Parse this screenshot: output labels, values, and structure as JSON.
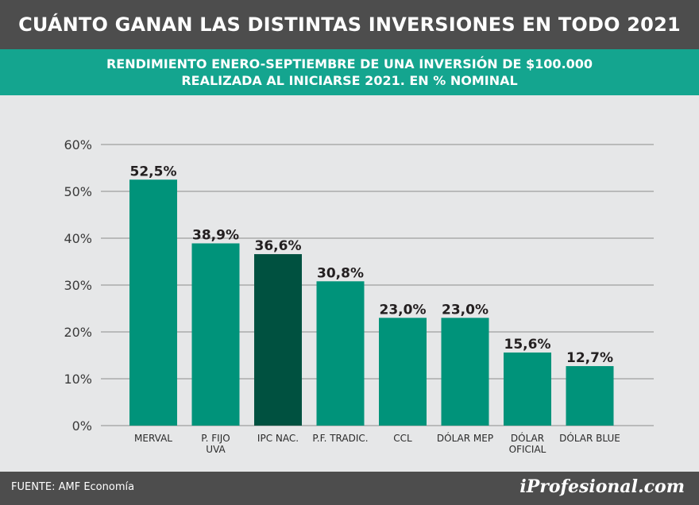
{
  "header": {
    "title": "CUÁNTO GANAN LAS DISTINTAS INVERSIONES EN TODO 2021",
    "subtitle_line1": "RENDIMIENTO ENERO-SEPTIEMBRE DE UNA INVERSIÓN DE $100.000",
    "subtitle_line2": "REALIZADA AL INICIARSE 2021. EN % NOMINAL"
  },
  "colors": {
    "bar": "#00937a",
    "bar_highlight": "#005140",
    "grid": "#9e9e9e",
    "label": "#231f20"
  },
  "chart_data": {
    "type": "bar",
    "title": "RENDIMIENTO ENERO-SEPTIEMBRE DE UNA INVERSIÓN DE $100.000 REALIZADA AL INICIARSE 2021. EN % NOMINAL",
    "categories": [
      [
        "MERVAL"
      ],
      [
        "P. FIJO",
        "UVA"
      ],
      [
        "IPC NAC."
      ],
      [
        "P.F. TRADIC."
      ],
      [
        "CCL"
      ],
      [
        "DÓLAR MEP"
      ],
      [
        "DÓLAR",
        "OFICIAL"
      ],
      [
        "DÓLAR BLUE"
      ]
    ],
    "values": [
      52.5,
      38.9,
      36.6,
      30.8,
      23.0,
      23.0,
      15.6,
      12.7
    ],
    "value_labels": [
      "52,5%",
      "38,9%",
      "36,6%",
      "30,8%",
      "23,0%",
      "23,0%",
      "15,6%",
      "12,7%"
    ],
    "highlight_index": 2,
    "ylim": [
      0,
      60
    ],
    "yticks": [
      0,
      10,
      20,
      30,
      40,
      50,
      60
    ],
    "ytick_labels": [
      "0%",
      "10%",
      "20%",
      "30%",
      "40%",
      "50%",
      "60%"
    ],
    "xlabel": "",
    "ylabel": "",
    "grid": true
  },
  "footer": {
    "source": "FUENTE: AMF Economía",
    "brand_i": "i",
    "brand_rest": "Profesional.com"
  }
}
